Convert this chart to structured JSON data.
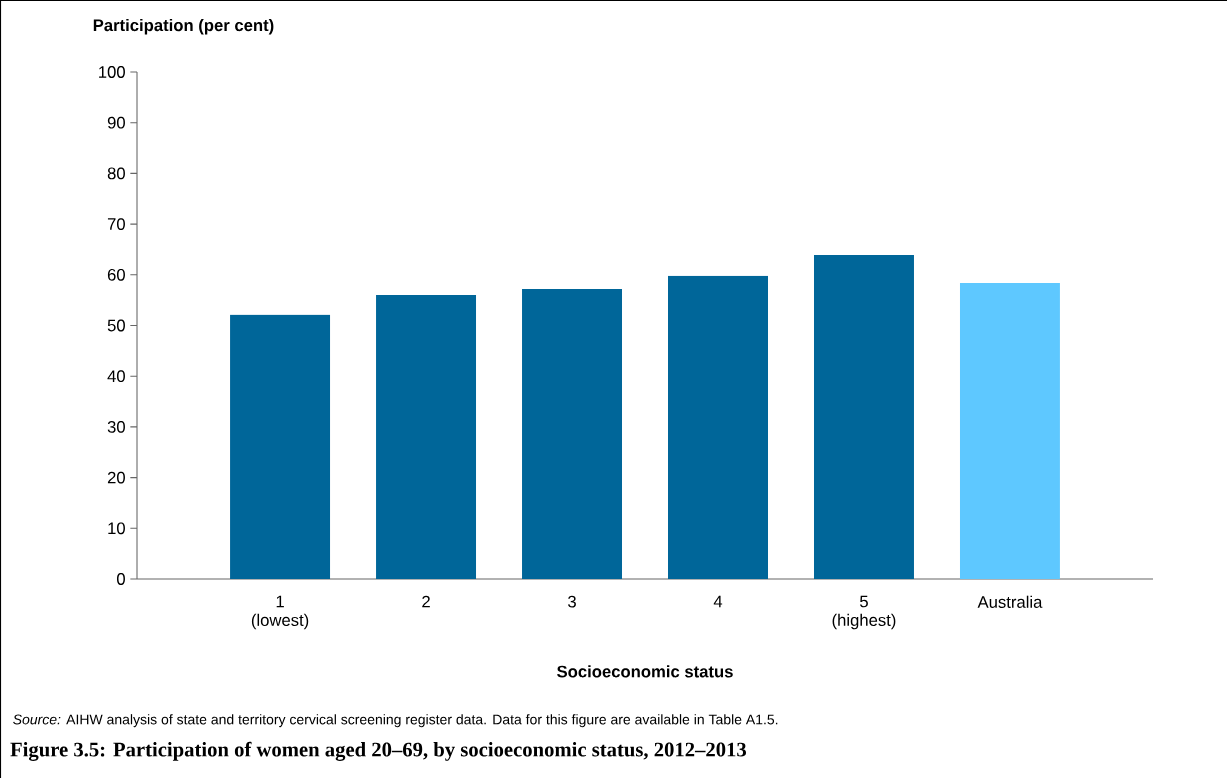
{
  "chart_data": {
    "type": "bar",
    "title": "Figure 3.5: Participation of women aged 20–69, by socioeconomic status, 2012–2013",
    "ylabel": "Participation (per cent)",
    "xlabel": "Socioeconomic status",
    "categories": [
      "1 (lowest)",
      "2",
      "3",
      "4",
      "5 (highest)",
      "Australia"
    ],
    "values": [
      52.1,
      56.0,
      57.2,
      59.8,
      63.9,
      58.4
    ],
    "colors": [
      "#006699",
      "#006699",
      "#006699",
      "#006699",
      "#006699",
      "#5ec8ff"
    ],
    "ylim": [
      0,
      100
    ],
    "yticks": [
      0,
      10,
      20,
      30,
      40,
      50,
      60,
      70,
      80,
      90,
      100
    ],
    "grid": false,
    "annotations": [
      "*Source:* AIHW analysis of state and territory cervical screening register data. Data for this figure are available in Table A1.5."
    ]
  }
}
